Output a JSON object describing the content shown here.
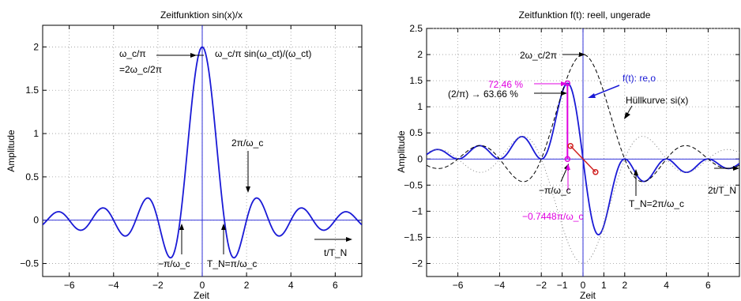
{
  "chart_data": [
    {
      "type": "line",
      "title": "Zeitfunktion sin(x)/x",
      "xlabel": "Zeit",
      "ylabel": "Amplitude",
      "xlim": [
        -7.2,
        7.2
      ],
      "ylim": [
        -0.65,
        2.25
      ],
      "grid": true,
      "x_ticks": [
        -6,
        -4,
        -2,
        0,
        2,
        4,
        6
      ],
      "x_tick_labels": [
        "−6",
        "−4",
        "−2",
        "0",
        "2",
        "4",
        "6"
      ],
      "y_ticks": [
        -0.5,
        0,
        0.5,
        1,
        1.5,
        2
      ],
      "y_tick_labels": [
        "−0.5",
        "0",
        "0.5",
        "1",
        "1.5",
        "2"
      ],
      "series": [
        {
          "function": "2*sin(pi*x)/(pi*x)",
          "color": "#1a1ad6",
          "x_range": [
            -7.2,
            7.2
          ],
          "step": 0.05
        }
      ],
      "annotations": [
        "ω_c/π",
        "=2ω_c/2π",
        "ω_c/π sin(ω_ct)/(ω_ct)",
        "2π/ω_c",
        "−π/ω_c",
        "T_N=π/ω_c",
        "t/T_N"
      ]
    },
    {
      "type": "line",
      "title": "Zeitfunktion f(t): reell, ungerade",
      "xlabel": "Zeit",
      "ylabel": "Amplitude",
      "xlim": [
        -7.5,
        7.5
      ],
      "ylim": [
        -2.25,
        2.5
      ],
      "grid": true,
      "x_ticks": [
        -6,
        -4,
        -2,
        -1,
        0,
        1,
        2,
        4,
        6
      ],
      "x_tick_labels": [
        "−6",
        "−4",
        "−2",
        "−1",
        "0",
        "1",
        "2",
        "4",
        "6"
      ],
      "y_ticks": [
        -2,
        -1.5,
        -1,
        -0.5,
        0,
        0.5,
        1,
        1.5,
        2,
        2.5
      ],
      "y_tick_labels": [
        "−2",
        "−1.5",
        "−1",
        "−0.5",
        "0",
        "0.5",
        "1",
        "1.5",
        "2",
        "2.5"
      ],
      "series": [
        {
          "name": "f(t): re,o",
          "function": "-2*sin(pi*x/2)^2/(pi*x/2)",
          "color": "#1a1ad6"
        },
        {
          "name": "Hüllkurve: si(x)",
          "function": "2*sin(pi*x/2)/(pi*x/2)",
          "color": "#000000",
          "dash": true
        },
        {
          "function": "-2*sin(pi*x/2)/(pi*x/2)",
          "color": "#808080",
          "dotted": true
        }
      ],
      "markers": [
        {
          "x": -0.7448,
          "y": 1.449,
          "color": "#e000e0"
        },
        {
          "x": -0.7448,
          "y": 0,
          "color": "#e000e0"
        },
        {
          "x": -0.6,
          "y": 0.25,
          "color": "#d02020"
        },
        {
          "x": 0.6,
          "y": -0.25,
          "color": "#d02020"
        }
      ],
      "annotations": [
        "2ω_c/2π",
        "72.46 %",
        "(2/π) → 63.66 %",
        "f(t): re,o",
        "Hüllkurve: si(x)",
        "−π/ω_c",
        "−0.7448π/ω_c",
        "T_N=2π/ω_c",
        "2t/T_N"
      ]
    }
  ]
}
